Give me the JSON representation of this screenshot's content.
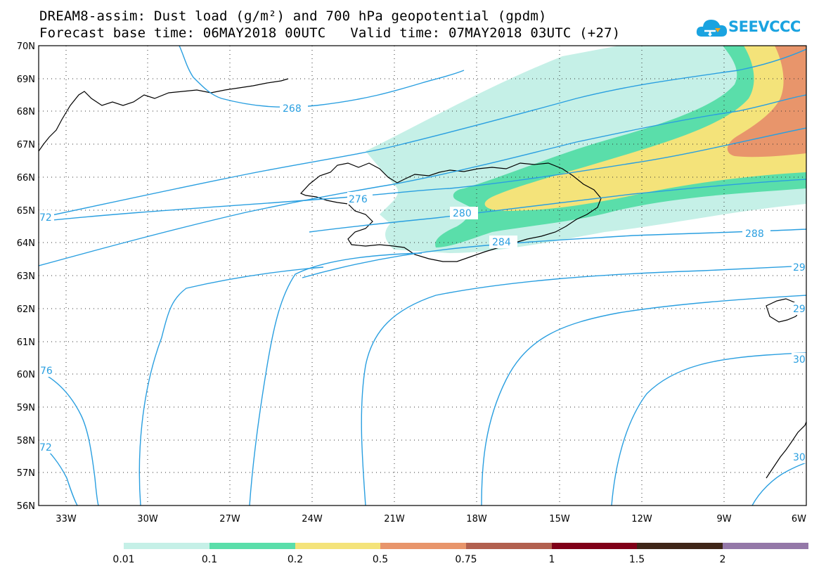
{
  "header": {
    "title_line1": "DREAM8-assim: Dust load (g/m²) and 700 hPa geopotential (gpdm)",
    "title_line2": "Forecast base time: 06MAY2018 00UTC   Valid time: 07MAY2018 03UTC (+27)",
    "logo_text": "SEEVCCC",
    "logo_color": "#1aa3e0"
  },
  "map": {
    "lat_labels": [
      "70N",
      "69N",
      "68N",
      "67N",
      "66N",
      "65N",
      "64N",
      "63N",
      "62N",
      "61N",
      "60N",
      "59N",
      "58N",
      "57N",
      "56N"
    ],
    "lon_labels": [
      "33W",
      "30W",
      "27W",
      "24W",
      "21W",
      "18W",
      "15W",
      "12W",
      "9W",
      "6W"
    ],
    "contour_color": "#2a9fe0",
    "contour_labels": [
      {
        "text": "268"
      },
      {
        "text": "276"
      },
      {
        "text": "280"
      },
      {
        "text": "284"
      },
      {
        "text": "288"
      },
      {
        "text": "72"
      },
      {
        "text": "76"
      },
      {
        "text": "72"
      },
      {
        "text": "29"
      },
      {
        "text": "29"
      },
      {
        "text": "30"
      },
      {
        "text": "30"
      }
    ]
  },
  "colorbar": {
    "colors": [
      "#c5f0e7",
      "#5adeaa",
      "#f4e37a",
      "#e8956b",
      "#b2604f",
      "#800018",
      "#3f2618",
      "#9478a8"
    ],
    "tick_labels": [
      "0.01",
      "0.1",
      "0.2",
      "0.5",
      "0.75",
      "1",
      "1.5",
      "2"
    ]
  }
}
